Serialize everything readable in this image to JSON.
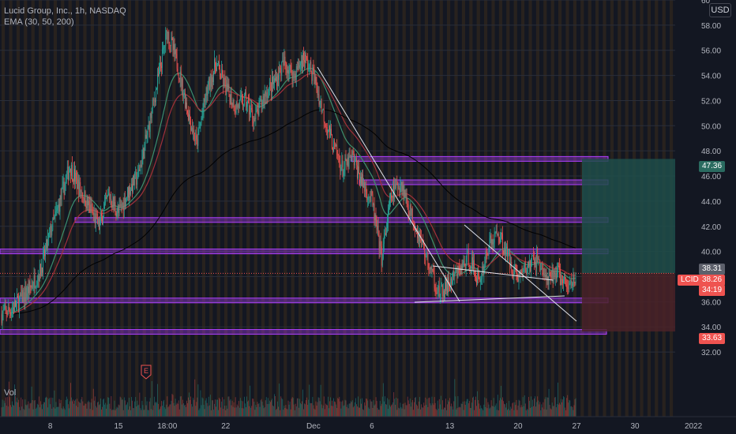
{
  "header": {
    "title": "Lucid Group, Inc., 1h, NASDAQ",
    "indicator": "EMA (30, 50, 200)",
    "currency": "USD",
    "volume_label": "Vol"
  },
  "earnings_marker": "E",
  "price_tags": {
    "ticker": "LCID",
    "last": "38.26",
    "countdown": "34:19",
    "ema_value": "38.31",
    "target": "47.36",
    "stop": "33.63"
  },
  "colors": {
    "background": "#131722",
    "up": "#26a69a",
    "down": "#ef5350",
    "level_zone": "#b040ff",
    "ema_fast": "#3c8f6e",
    "ema_mid": "#a0303a",
    "ema_slow": "#000000",
    "profit_zone": "#1f4e4a",
    "loss_zone": "#4a2228"
  },
  "chart_data": {
    "type": "candlestick",
    "symbol": "LCID",
    "interval": "1h",
    "ylim": [
      31,
      60
    ],
    "y_ticks": [
      "32.00",
      "34.00",
      "36.00",
      "38.00",
      "40.00",
      "42.00",
      "44.00",
      "46.00",
      "48.00",
      "50.00",
      "52.00",
      "54.00",
      "56.00",
      "58.00",
      "60"
    ],
    "y_tick_values": [
      32,
      34,
      36,
      38,
      40,
      42,
      44,
      46,
      48,
      50,
      52,
      54,
      56,
      58,
      60
    ],
    "x_ticks": [
      "8",
      "15",
      "18:00",
      "22",
      "Dec",
      "6",
      "13",
      "20",
      "27",
      "30",
      "2022"
    ],
    "x_tick_index": [
      5,
      12,
      17,
      23,
      32,
      38,
      46,
      53,
      59,
      65,
      71
    ],
    "last_price": 38.26,
    "ohlc_close_path": [
      35.0,
      35.4,
      36.2,
      37.2,
      38.5,
      41.5,
      44.0,
      46.8,
      45.0,
      43.5,
      42.0,
      44.5,
      43.0,
      44.8,
      46.0,
      49.5,
      53.5,
      57.5,
      55.0,
      51.5,
      48.5,
      52.5,
      55.0,
      53.0,
      51.5,
      52.0,
      50.5,
      52.5,
      53.5,
      55.0,
      54.0,
      55.5,
      54.0,
      51.0,
      48.5,
      46.5,
      47.5,
      45.5,
      44.0,
      39.5,
      44.5,
      45.5,
      43.0,
      41.0,
      38.5,
      36.5,
      37.5,
      38.5,
      39.5,
      37.5,
      40.5,
      41.5,
      39.5,
      38.0,
      38.8,
      39.5,
      37.5,
      38.5,
      37.0,
      38.3
    ],
    "resistance_support_levels": [
      47.36,
      45.5,
      42.5,
      40.0,
      36.1,
      33.6
    ],
    "long_position": {
      "entry": 38.26,
      "target": 47.36,
      "stop": 33.63
    },
    "ema_periods": [
      30,
      50,
      200
    ]
  }
}
